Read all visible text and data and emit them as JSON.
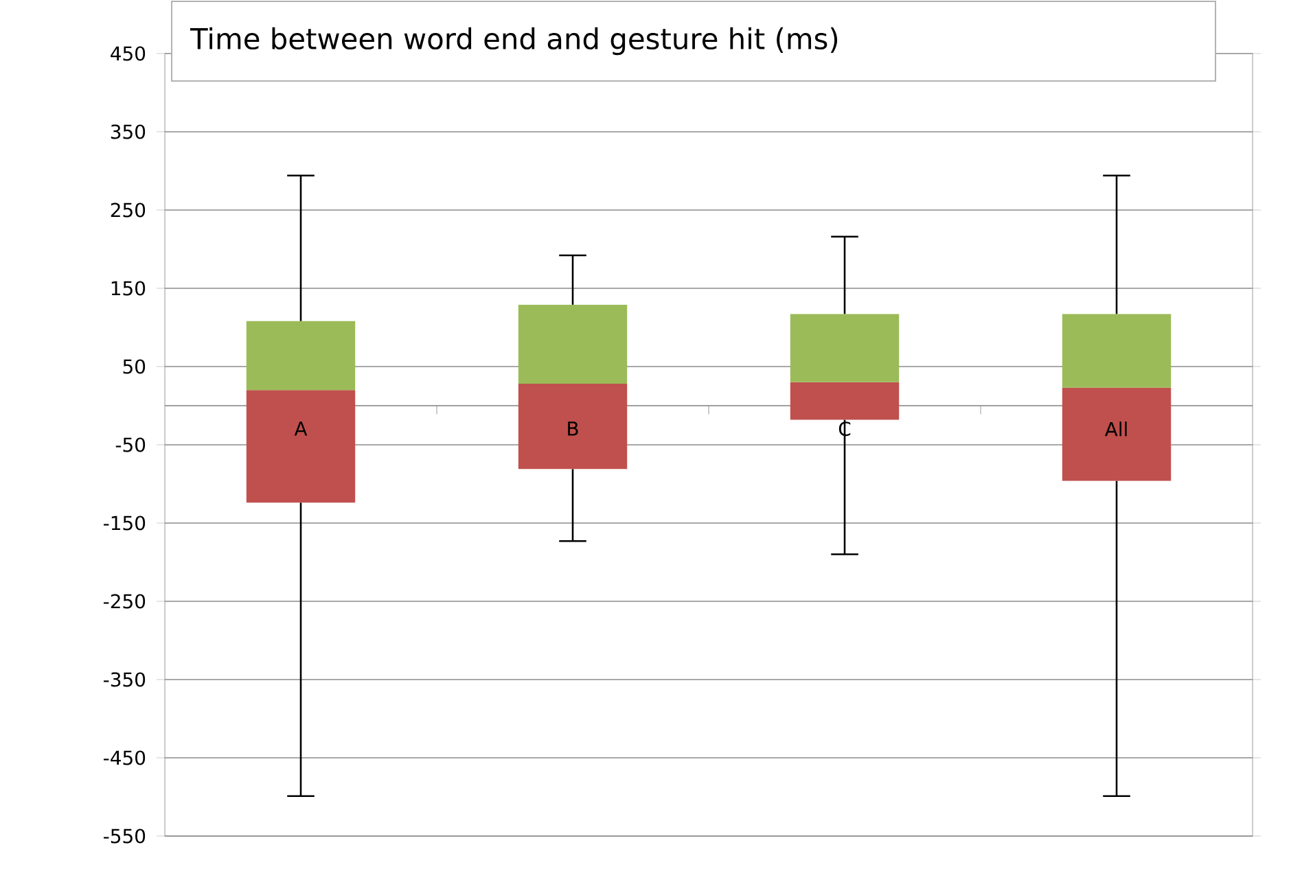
{
  "chart_data": {
    "type": "box",
    "title": "Time between word end and gesture hit (ms)",
    "categories": [
      "A",
      "B",
      "C",
      "All"
    ],
    "boxes": [
      {
        "low": -499,
        "q1": -124,
        "median": 20,
        "q3": 108,
        "high": 294
      },
      {
        "low": -173,
        "q1": -81,
        "median": 28,
        "q3": 129,
        "high": 192
      },
      {
        "low": -190,
        "q1": -18,
        "median": 30,
        "q3": 117,
        "high": 216
      },
      {
        "low": -499,
        "q1": -96,
        "median": 23,
        "q3": 117,
        "high": 294
      }
    ],
    "colors": [
      [
        "#c0504d",
        "#9bbb59"
      ],
      [
        "#c0504d",
        "#9bbb59"
      ],
      [
        "#c0504d",
        "#9bbb59"
      ],
      [
        "#c0504d",
        "#9bbb59"
      ]
    ],
    "ylim": [
      -550,
      450
    ],
    "yticks": [
      -550,
      -450,
      -350,
      -250,
      -150,
      -50,
      50,
      150,
      250,
      350,
      450
    ],
    "grid": "y"
  }
}
